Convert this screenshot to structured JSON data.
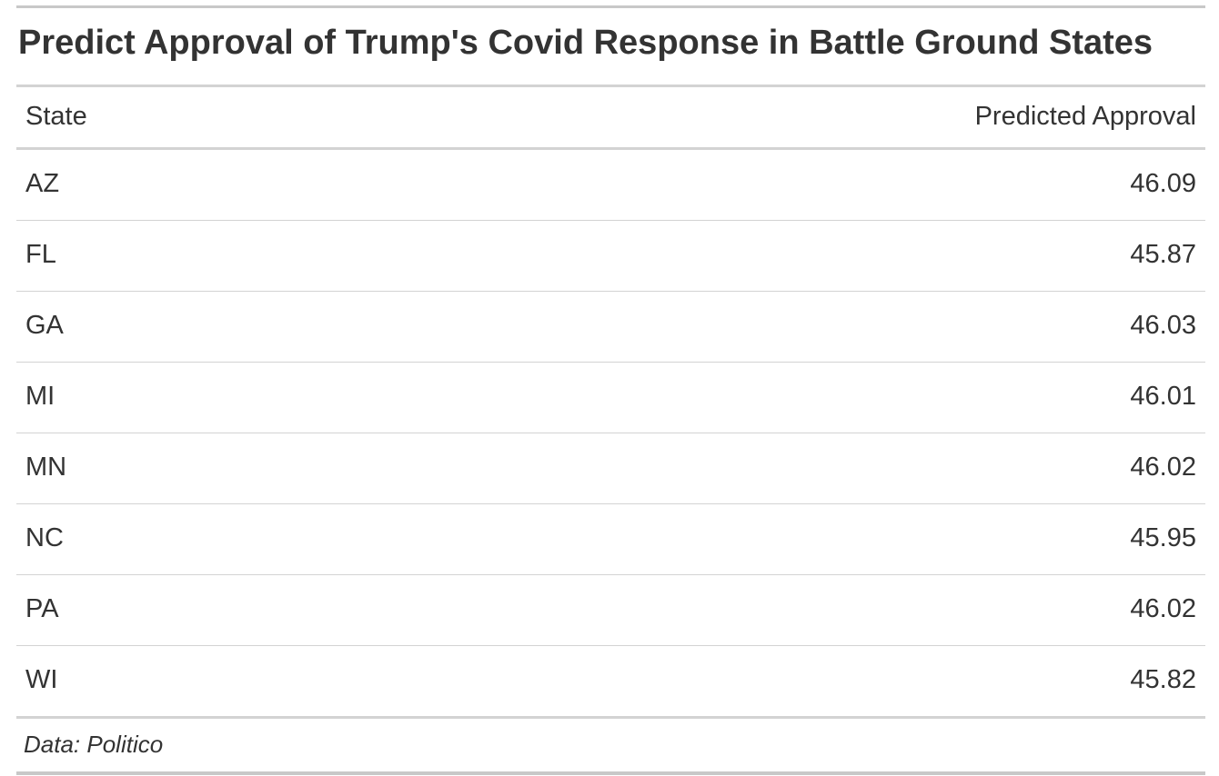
{
  "chart_data": {
    "type": "table",
    "title": "Predict Approval of Trump's Covid Response in Battle Ground States",
    "columns": [
      "State",
      "Predicted Approval"
    ],
    "rows": [
      {
        "state": "AZ",
        "approval": "46.09"
      },
      {
        "state": "FL",
        "approval": "45.87"
      },
      {
        "state": "GA",
        "approval": "46.03"
      },
      {
        "state": "MI",
        "approval": "46.01"
      },
      {
        "state": "MN",
        "approval": "46.02"
      },
      {
        "state": "NC",
        "approval": "45.95"
      },
      {
        "state": "PA",
        "approval": "46.02"
      },
      {
        "state": "WI",
        "approval": "45.82"
      }
    ],
    "source_note": "Data: Politico"
  },
  "colors": {
    "text": "#333333",
    "rule": "#d3d3d3"
  }
}
